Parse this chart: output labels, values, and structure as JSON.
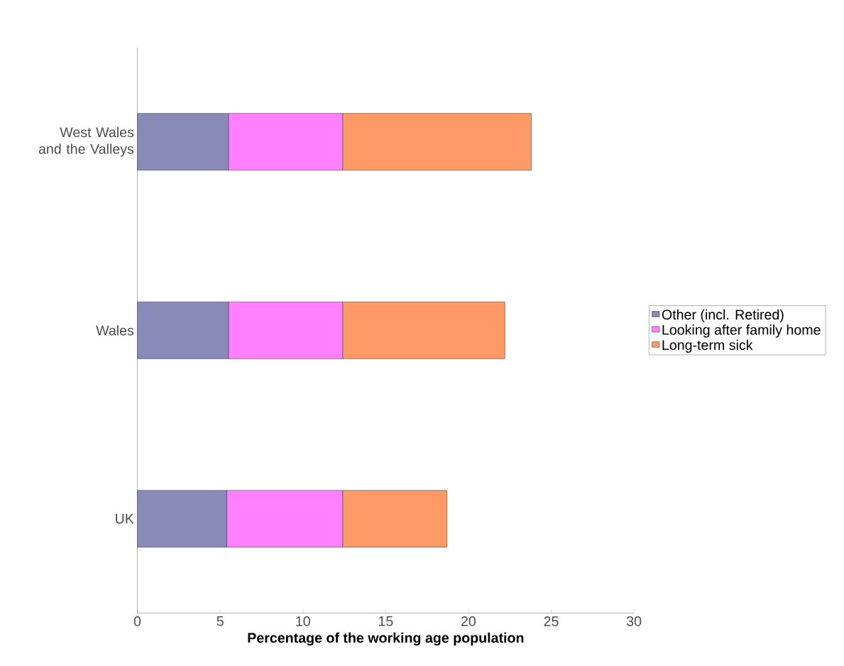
{
  "chart_data": {
    "type": "bar",
    "orientation": "horizontal",
    "stacked": true,
    "xlabel": "Percentage of the working age population",
    "categories": [
      "West Wales and the Valleys",
      "Wales",
      "UK"
    ],
    "series": [
      {
        "name": "Other (incl. Retired)",
        "color": "#8a8ab8",
        "values": [
          5.5,
          5.5,
          5.4
        ]
      },
      {
        "name": "Looking after family home",
        "color": "#ff80ff",
        "values": [
          6.9,
          6.9,
          7.0
        ]
      },
      {
        "name": "Long-term sick",
        "color": "#ff9966",
        "values": [
          11.4,
          9.8,
          6.3
        ]
      }
    ],
    "xlim": [
      0,
      30
    ],
    "xticks": [
      0,
      5,
      10,
      15,
      20,
      25,
      30
    ],
    "grid": false,
    "legend": "right"
  }
}
